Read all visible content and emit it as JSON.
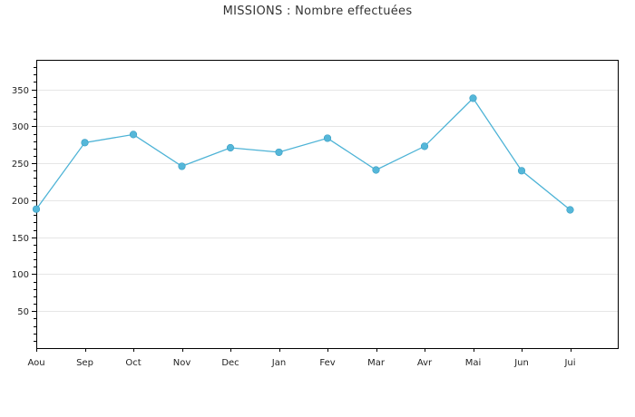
{
  "chart_data": {
    "type": "line",
    "title": "MISSIONS : Nombre effectuées",
    "xlabel": "",
    "ylabel": "",
    "categories": [
      "Aou",
      "Sep",
      "Oct",
      "Nov",
      "Dec",
      "Jan",
      "Fev",
      "Mar",
      "Avr",
      "Mai",
      "Jun",
      "Jui"
    ],
    "series": [
      {
        "values": [
          188,
          278,
          289,
          246,
          271,
          265,
          284,
          241,
          273,
          338,
          240,
          187
        ]
      }
    ],
    "ylim": [
      0,
      390
    ],
    "yticks": [
      50,
      100,
      150,
      200,
      250,
      300,
      350
    ],
    "grid": true,
    "legend": "none",
    "colors": {
      "line": "#4db3d6",
      "marker": "#55b7d9",
      "grid": "#e6e6e6",
      "axis": "#000000"
    }
  }
}
